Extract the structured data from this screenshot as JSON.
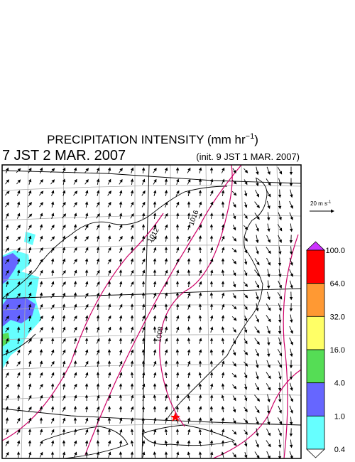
{
  "title": {
    "text": "PRECIPITATION INTENSITY (mm hr",
    "superscript": "−1",
    "close": ")"
  },
  "valid_time": "7 JST 2 MAR. 2007",
  "init_time": "(init. 9 JST 1 MAR. 2007)",
  "vector_scale": {
    "text": "20 m s",
    "superscript": "-1"
  },
  "isobar_labels": [
    "1012",
    "1016",
    "1008"
  ],
  "colorbar": {
    "labels": [
      "100.0",
      "64.0",
      "32.0",
      "16.0",
      "4.0",
      "1.0",
      "0.4"
    ],
    "over_color": "#cc33ff",
    "colors": [
      "#ff0000",
      "#ff9933",
      "#ffff66",
      "#55dd55",
      "#6666ff",
      "#66ffff"
    ],
    "under_color": "#ffffff"
  }
}
